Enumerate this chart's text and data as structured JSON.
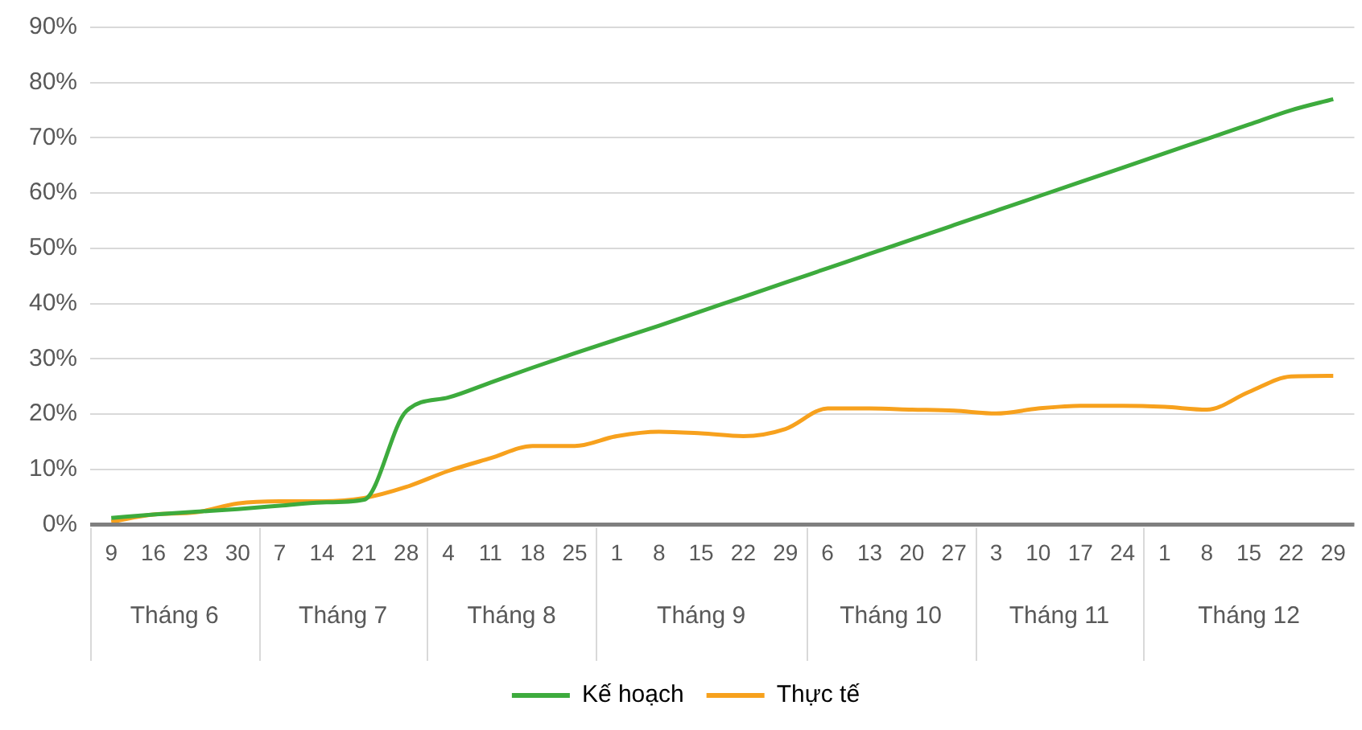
{
  "chart_data": {
    "type": "line",
    "categories": [
      "9",
      "16",
      "23",
      "30",
      "7",
      "14",
      "21",
      "28",
      "4",
      "11",
      "18",
      "25",
      "1",
      "8",
      "15",
      "22",
      "29",
      "6",
      "13",
      "20",
      "27",
      "3",
      "10",
      "17",
      "24",
      "1",
      "8",
      "15",
      "22",
      "29"
    ],
    "annotations": [
      "Tháng 6",
      "Tháng 7",
      "Tháng 8",
      "Tháng 9",
      "Tháng 10",
      "Tháng 11",
      "Tháng 12"
    ],
    "series": [
      {
        "name": "Kế hoạch",
        "color": "#3dab3d",
        "values": [
          1.2,
          1.8,
          2.3,
          2.8,
          3.4,
          4,
          4.5,
          20.5,
          23,
          25.7,
          28.4,
          31,
          33.5,
          36,
          38.6,
          41.2,
          43.8,
          46.4,
          49,
          51.6,
          54.2,
          56.8,
          59.4,
          62,
          64.6,
          67.2,
          69.8,
          72.4,
          75,
          77
        ]
      },
      {
        "name": "Thực tế",
        "color": "#f7a11d",
        "values": [
          0.5,
          1.8,
          2.2,
          3.8,
          4.2,
          4.2,
          4.8,
          6.8,
          9.7,
          12,
          14.2,
          14.2,
          16,
          16.8,
          16.5,
          16,
          17.3,
          21,
          21,
          20.8,
          20.6,
          20.1,
          21,
          21.5,
          21.5,
          21.3,
          20.8,
          24,
          26.8,
          26.9
        ]
      }
    ],
    "ylim": [
      0,
      90
    ],
    "yticks": [
      {
        "value": 0,
        "label": "0%"
      },
      {
        "value": 10,
        "label": "10%"
      },
      {
        "value": 20,
        "label": "20%"
      },
      {
        "value": 30,
        "label": "30%"
      },
      {
        "value": 40,
        "label": "40%"
      },
      {
        "value": 50,
        "label": "50%"
      },
      {
        "value": 60,
        "label": "60%"
      },
      {
        "value": 70,
        "label": "70%"
      },
      {
        "value": 80,
        "label": "80%"
      },
      {
        "value": 90,
        "label": "90%"
      }
    ],
    "grid": "y",
    "legend": "bottom",
    "marker": "none",
    "line_style": "solid"
  }
}
